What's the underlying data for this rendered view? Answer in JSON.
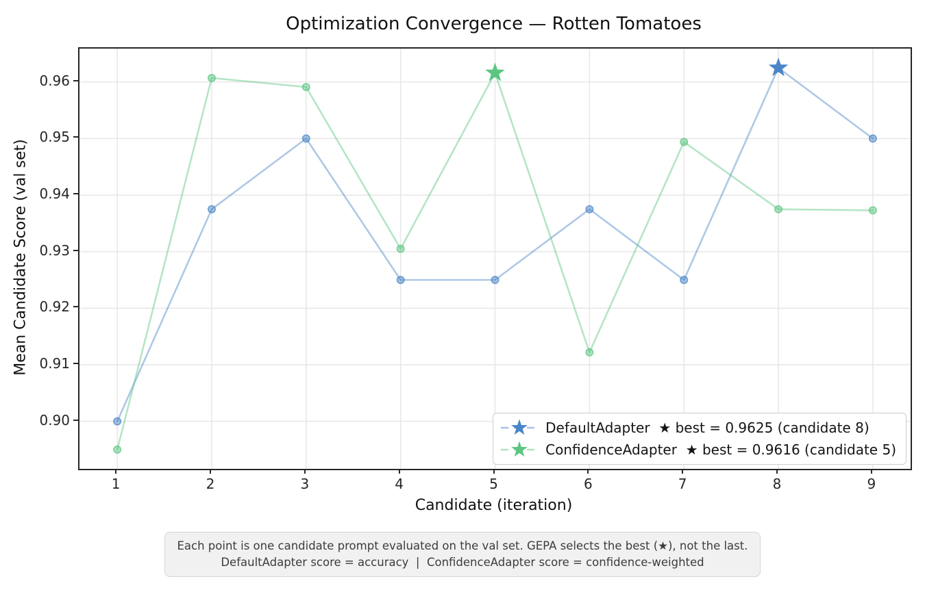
{
  "chart_data": {
    "type": "line",
    "title": "Optimization Convergence — Rotten Tomatoes",
    "xlabel": "Candidate (iteration)",
    "ylabel": "Mean Candidate Score (val set)",
    "x": [
      1,
      2,
      3,
      4,
      5,
      6,
      7,
      8,
      9
    ],
    "xticks": [
      1,
      2,
      3,
      4,
      5,
      6,
      7,
      8,
      9
    ],
    "yticks": [
      0.9,
      0.91,
      0.92,
      0.93,
      0.94,
      0.95,
      0.96
    ],
    "xlim": [
      0.6,
      9.4
    ],
    "ylim": [
      0.8916,
      0.9659
    ],
    "grid": true,
    "legend_position": "lower right",
    "series": [
      {
        "name": "DefaultAdapter",
        "legend_label": "DefaultAdapter  ★ best = 0.9625 (candidate 8)",
        "color": "#4a86c8",
        "marker": "circle",
        "best_marker": "star",
        "best_candidate": 8,
        "best_value": 0.9625,
        "values": [
          0.9,
          0.9375,
          0.95,
          0.925,
          0.925,
          0.9375,
          0.925,
          0.9625,
          0.95
        ]
      },
      {
        "name": "ConfidenceAdapter",
        "legend_label": "ConfidenceAdapter  ★ best = 0.9616 (candidate 5)",
        "color": "#5cc681",
        "marker": "circle",
        "best_marker": "star",
        "best_candidate": 5,
        "best_value": 0.9616,
        "values": [
          0.895,
          0.9607,
          0.9591,
          0.9305,
          0.9616,
          0.9122,
          0.9494,
          0.9375,
          0.9373
        ]
      }
    ]
  },
  "caption": {
    "line1": "Each point is one candidate prompt evaluated on the val set. GEPA selects the best (★), not the last.",
    "line2": "DefaultAdapter score = accuracy  |  ConfidenceAdapter score = confidence-weighted"
  },
  "colors": {
    "blue": "#4a86c8",
    "green": "#5cc681",
    "grid": "#e8e8e8",
    "spine": "#262626",
    "caption_bg": "#f1f1f1",
    "caption_border": "#d6d6d6",
    "legend_border": "#cccccc"
  }
}
